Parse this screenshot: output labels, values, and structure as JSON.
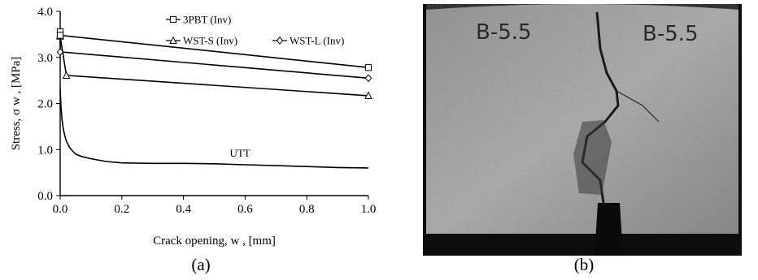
{
  "chart_data": {
    "type": "line",
    "xlabel": "Crack opening, w , [mm]",
    "ylabel": "Stress, σ w , [MPa]",
    "xlim": [
      0.0,
      1.0
    ],
    "ylim": [
      0.0,
      4.0
    ],
    "x_ticks": [
      "0.0",
      "0.2",
      "0.4",
      "0.6",
      "0.8",
      "1.0"
    ],
    "y_ticks": [
      "0.0",
      "1.0",
      "2.0",
      "3.0",
      "4.0"
    ],
    "grid": false,
    "legend_position": "top-right",
    "series": [
      {
        "name": "3PBT (Inv)",
        "marker": "square",
        "x": [
          0.0,
          0.0,
          1.0
        ],
        "y": [
          3.56,
          3.48,
          2.78
        ]
      },
      {
        "name": "WST-S (Inv)",
        "marker": "triangle",
        "x": [
          0.0,
          0.0,
          0.02,
          1.0
        ],
        "y": [
          3.48,
          3.46,
          2.61,
          2.17
        ]
      },
      {
        "name": "WST-L (Inv)",
        "marker": "diamond",
        "x": [
          0.0,
          0.0,
          1.0
        ],
        "y": [
          3.48,
          3.12,
          2.55
        ]
      },
      {
        "name": "UTT",
        "marker": "none",
        "x": [
          0.0,
          0.003,
          0.006,
          0.01,
          0.015,
          0.02,
          0.03,
          0.04,
          0.05,
          0.07,
          0.1,
          0.15,
          0.2,
          0.3,
          0.4,
          0.5,
          0.6,
          0.7,
          0.8,
          0.9,
          1.0
        ],
        "y": [
          2.3,
          1.9,
          1.65,
          1.45,
          1.3,
          1.18,
          1.05,
          0.97,
          0.9,
          0.85,
          0.8,
          0.74,
          0.71,
          0.7,
          0.7,
          0.69,
          0.67,
          0.65,
          0.63,
          0.61,
          0.6
        ]
      }
    ]
  },
  "annotations": {
    "utt_label": "UTT"
  },
  "captions": {
    "a": "(a)",
    "b": "(b)"
  },
  "photo": {
    "specimen_label_left": "B-5.5",
    "specimen_label_right": "B-5.5"
  }
}
